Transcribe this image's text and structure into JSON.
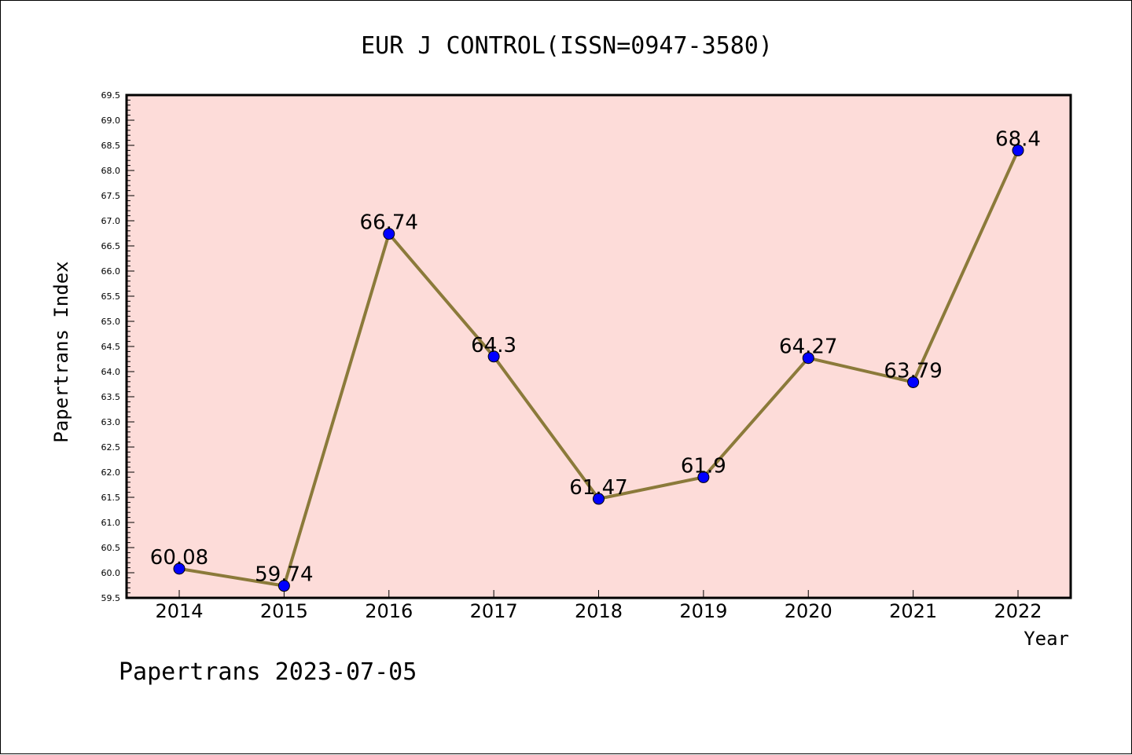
{
  "chart_data": {
    "type": "line",
    "title": "EUR J CONTROL(ISSN=0947-3580)",
    "xlabel": "Year",
    "ylabel": "Papertrans Index",
    "x": [
      "2014",
      "2015",
      "2016",
      "2017",
      "2018",
      "2019",
      "2020",
      "2021",
      "2022"
    ],
    "series": [
      {
        "values": [
          60.08,
          59.74,
          66.74,
          64.3,
          61.47,
          61.9,
          64.27,
          63.79,
          68.4
        ],
        "labels": [
          "60.08",
          "59.74",
          "66.74",
          "64.3",
          "61.47",
          "61.9",
          "64.27",
          "63.79",
          "68.4"
        ]
      }
    ],
    "ylim": [
      59.5,
      69.5
    ],
    "ytick_step": 0.5,
    "grid": false,
    "colors": {
      "plot_background": "#fddcd9",
      "line": "#8b7a3a",
      "marker": "#0000ff"
    }
  },
  "footer": "Papertrans 2023-07-05"
}
